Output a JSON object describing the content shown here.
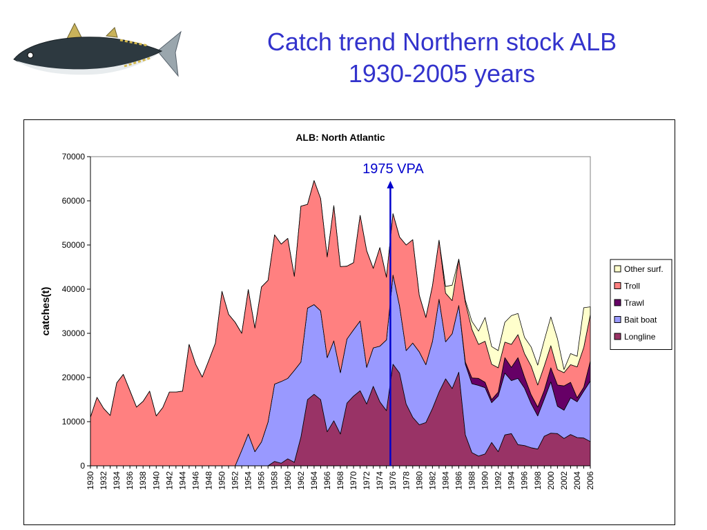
{
  "slide": {
    "title_line1": "Catch trend Northern stock ALB",
    "title_line2": "1930-2005 years",
    "accent_color": "#3333cc"
  },
  "chart_data": {
    "type": "area",
    "stacked": true,
    "title": "ALB: North Atlantic",
    "xlabel": "",
    "ylabel": "catches(t)",
    "ylim": [
      0,
      70000
    ],
    "yticks": [
      0,
      10000,
      20000,
      30000,
      40000,
      50000,
      60000,
      70000
    ],
    "xticks": [
      "1930",
      "1932",
      "1934",
      "1936",
      "1938",
      "1940",
      "1942",
      "1944",
      "1946",
      "1948",
      "1950",
      "1952",
      "1954",
      "1956",
      "1958",
      "1960",
      "1962",
      "1964",
      "1966",
      "1968",
      "1970",
      "1972",
      "1974",
      "1976",
      "1978",
      "1980",
      "1982",
      "1984",
      "1986",
      "1988",
      "1990",
      "1992",
      "1994",
      "1996",
      "1998",
      "2000",
      "2002",
      "2004",
      "2006"
    ],
    "x": [
      1930,
      1931,
      1932,
      1933,
      1934,
      1935,
      1936,
      1937,
      1938,
      1939,
      1940,
      1941,
      1942,
      1943,
      1944,
      1945,
      1946,
      1947,
      1948,
      1949,
      1950,
      1951,
      1952,
      1953,
      1954,
      1955,
      1956,
      1957,
      1958,
      1959,
      1960,
      1961,
      1962,
      1963,
      1964,
      1965,
      1966,
      1967,
      1968,
      1969,
      1970,
      1971,
      1972,
      1973,
      1974,
      1975,
      1976,
      1977,
      1978,
      1979,
      1980,
      1981,
      1982,
      1983,
      1984,
      1985,
      1986,
      1987,
      1988,
      1989,
      1990,
      1991,
      1992,
      1993,
      1994,
      1995,
      1996,
      1997,
      1998,
      1999,
      2000,
      2001,
      2002,
      2003,
      2004,
      2005,
      2006
    ],
    "grid": false,
    "legend_position": "right",
    "series": [
      {
        "name": "Longline",
        "color": "#993366",
        "values": [
          0,
          0,
          0,
          0,
          0,
          0,
          0,
          0,
          0,
          0,
          0,
          0,
          0,
          0,
          0,
          0,
          0,
          0,
          0,
          0,
          0,
          0,
          0,
          0,
          0,
          0,
          0,
          0,
          1000,
          600,
          1600,
          800,
          6500,
          15000,
          16200,
          15000,
          7700,
          10200,
          7200,
          14200,
          15800,
          17000,
          14000,
          18000,
          14500,
          12500,
          23000,
          21000,
          14000,
          11000,
          9300,
          9800,
          13000,
          16700,
          19700,
          17500,
          21200,
          7000,
          3000,
          2200,
          2700,
          5300,
          3200,
          7000,
          7300,
          4800,
          4600,
          4100,
          3800,
          6700,
          7400,
          7300,
          6200,
          7100,
          6400,
          6300,
          5500
        ]
      },
      {
        "name": "Bait boat",
        "color": "#9999ff",
        "values": [
          0,
          0,
          0,
          0,
          0,
          0,
          0,
          0,
          0,
          0,
          0,
          0,
          0,
          0,
          0,
          0,
          0,
          0,
          0,
          0,
          0,
          0,
          0,
          3500,
          7200,
          3200,
          5400,
          9900,
          17500,
          18500,
          18200,
          20800,
          17000,
          20700,
          20300,
          20100,
          16800,
          18100,
          13900,
          14500,
          15000,
          15800,
          8300,
          8700,
          12600,
          16000,
          20200,
          15200,
          12100,
          16800,
          16500,
          13100,
          15200,
          21000,
          8400,
          12400,
          15100,
          16000,
          15600,
          16000,
          15000,
          9000,
          12600,
          14000,
          12000,
          15000,
          13000,
          10000,
          7500,
          8400,
          11600,
          6200,
          6400,
          8300,
          8100,
          10600,
          13700
        ]
      },
      {
        "name": "Trawl",
        "color": "#660066",
        "values": [
          0,
          0,
          0,
          0,
          0,
          0,
          0,
          0,
          0,
          0,
          0,
          0,
          0,
          0,
          0,
          0,
          0,
          0,
          0,
          0,
          0,
          0,
          0,
          0,
          0,
          0,
          0,
          0,
          0,
          0,
          0,
          0,
          0,
          0,
          0,
          0,
          0,
          0,
          0,
          0,
          0,
          0,
          0,
          0,
          0,
          0,
          0,
          0,
          0,
          0,
          0,
          0,
          0,
          0,
          0,
          0,
          0,
          500,
          1300,
          1600,
          1200,
          700,
          900,
          3500,
          3000,
          4700,
          2500,
          2000,
          2000,
          2000,
          3200,
          4800,
          5500,
          3500,
          900,
          900,
          4500
        ]
      },
      {
        "name": "Troll",
        "color": "#ff8080",
        "values": [
          11000,
          15500,
          13000,
          11400,
          18800,
          20700,
          17000,
          13300,
          14600,
          16900,
          11300,
          13200,
          16700,
          16700,
          16900,
          27500,
          23000,
          20100,
          23900,
          27800,
          39500,
          34300,
          32500,
          26500,
          32700,
          28000,
          35100,
          32100,
          33800,
          31100,
          31700,
          21300,
          35300,
          23500,
          28100,
          25400,
          22800,
          30600,
          24000,
          16500,
          15200,
          23900,
          26400,
          18000,
          22300,
          14200,
          13900,
          15600,
          23900,
          23400,
          12800,
          10700,
          12600,
          13400,
          11000,
          7500,
          10500,
          13500,
          11000,
          7700,
          9300,
          8000,
          5500,
          3500,
          5200,
          5200,
          5300,
          6500,
          5000,
          5500,
          5000,
          3500,
          3000,
          4000,
          7000,
          9000,
          10500
        ]
      },
      {
        "name": "Other surf.",
        "color": "#ffffcc",
        "values": [
          0,
          0,
          0,
          0,
          0,
          0,
          0,
          0,
          0,
          0,
          0,
          0,
          0,
          0,
          0,
          0,
          0,
          0,
          0,
          0,
          0,
          0,
          0,
          0,
          0,
          0,
          0,
          0,
          0,
          0,
          0,
          0,
          0,
          0,
          0,
          0,
          0,
          0,
          0,
          0,
          0,
          0,
          0,
          0,
          0,
          0,
          0,
          0,
          0,
          0,
          0,
          0,
          0,
          0,
          1500,
          3500,
          0,
          500,
          1800,
          3000,
          5400,
          4000,
          3900,
          4500,
          6500,
          4800,
          3700,
          4300,
          4500,
          5800,
          6500,
          7000,
          700,
          2500,
          2400,
          9000,
          1800
        ]
      }
    ],
    "annotation": {
      "label": "1975 VPA",
      "x": 1975.6,
      "color": "#0000cc"
    }
  }
}
